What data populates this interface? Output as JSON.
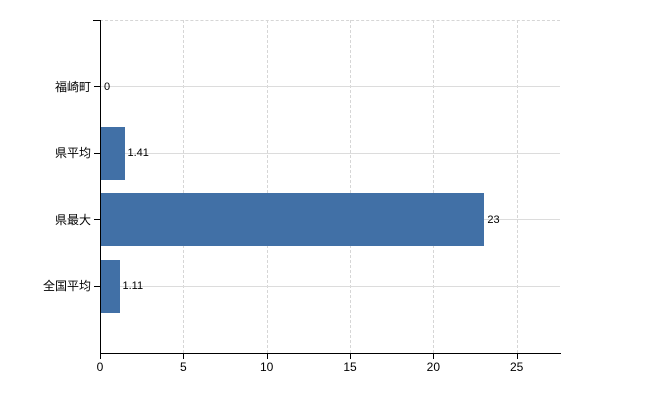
{
  "chart_data": {
    "type": "bar",
    "orientation": "horizontal",
    "title": "",
    "xlabel": "",
    "ylabel": "",
    "categories": [
      "福崎町",
      "県平均",
      "県最大",
      "全国平均"
    ],
    "values": [
      0,
      1.41,
      23,
      1.11
    ],
    "value_labels": [
      "0",
      "1.41",
      "23",
      "1.11"
    ],
    "x_ticks": [
      0,
      5,
      10,
      15,
      20,
      25
    ],
    "xlim": [
      0,
      27.6
    ],
    "grid": true,
    "legend": false,
    "colors": {
      "bar": "#4170a6",
      "horizontal_gridline": "#dcdcdc",
      "vertical_gridline": "#d6d6d6",
      "axis": "#000000",
      "text": "#000000",
      "background": "#ffffff"
    }
  }
}
